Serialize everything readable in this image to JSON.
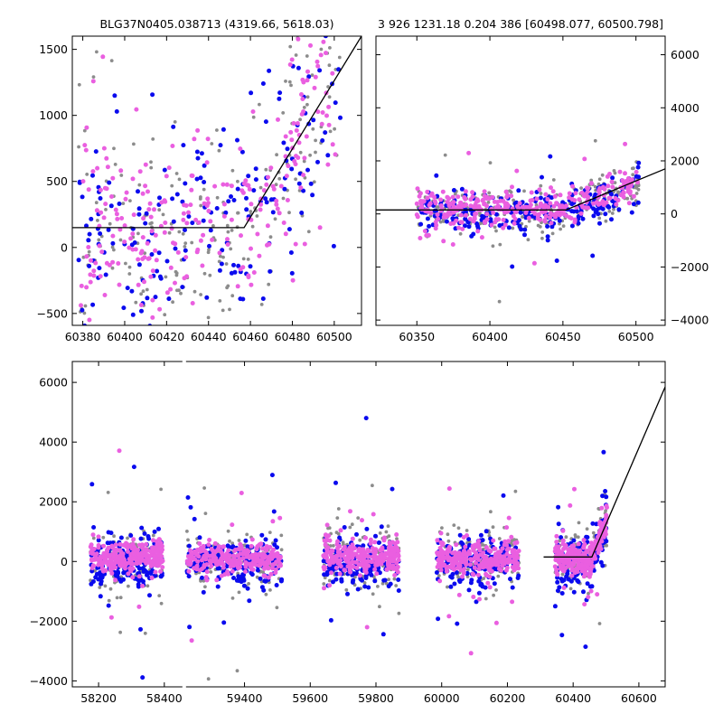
{
  "titles": {
    "left": "BLG37N0405.038713 (4319.66, 5618.03)",
    "right": "3 926 1231.18 0.204 386 [60498.077, 60500.798]"
  },
  "colors": {
    "series_grey": "#8c8c8c",
    "series_blue": "#0a0aee",
    "series_magenta": "#ea5fe0",
    "model": "#000000"
  },
  "chart_data": [
    {
      "id": "zoom",
      "type": "scatter",
      "title": "BLG37N0405.038713 (4319.66, 5618.03)",
      "xlim": [
        60375,
        60513
      ],
      "ylim": [
        -590,
        1600
      ],
      "xticks": [
        60380,
        60400,
        60420,
        60440,
        60460,
        60480,
        60500
      ],
      "yticks": [
        -500,
        0,
        500,
        1000,
        1500
      ],
      "grid": false,
      "model": {
        "x": [
          60375,
          60457,
          60513
        ],
        "y": [
          150,
          150,
          1600
        ]
      },
      "series": [
        {
          "color": "series_grey",
          "scatter": {
            "x0": 60378,
            "x1": 60503,
            "ybase": 130,
            "slope_start": 60457,
            "slope": 26,
            "spread": 380,
            "n": 210,
            "seed": 11
          }
        },
        {
          "color": "series_blue",
          "scatter": {
            "x0": 60378,
            "x1": 60503,
            "ybase": 120,
            "slope_start": 60457,
            "slope": 26,
            "spread": 420,
            "n": 190,
            "seed": 23
          }
        },
        {
          "color": "series_magenta",
          "scatter": {
            "x0": 60378,
            "x1": 60503,
            "ybase": 170,
            "slope_start": 60457,
            "slope": 26,
            "spread": 360,
            "n": 260,
            "seed": 37
          }
        }
      ]
    },
    {
      "id": "wide",
      "type": "scatter",
      "title": "3 926 1231.18 0.204 386 [60498.077, 60500.798]",
      "xlim": [
        60322,
        60520
      ],
      "ylim": [
        -4200,
        6700
      ],
      "xticks": [
        60350,
        60400,
        60450,
        60500
      ],
      "yticks": [
        -4000,
        -2000,
        0,
        2000,
        4000,
        6000
      ],
      "y_axis_side": "right",
      "grid": false,
      "model": {
        "x": [
          60322,
          60452,
          60520
        ],
        "y": [
          150,
          150,
          1700
        ]
      },
      "series": [
        {
          "color": "series_grey",
          "scatter": {
            "x0": 60350,
            "x1": 60502,
            "ybase": 100,
            "slope_start": 60452,
            "slope": 22,
            "spread": 450,
            "n": 230,
            "seed": 41
          }
        },
        {
          "color": "series_blue",
          "scatter": {
            "x0": 60350,
            "x1": 60502,
            "ybase": 40,
            "slope_start": 60452,
            "slope": 22,
            "spread": 420,
            "n": 260,
            "seed": 53
          }
        },
        {
          "color": "series_magenta",
          "scatter": {
            "x0": 60350,
            "x1": 60502,
            "ybase": 150,
            "slope_start": 60452,
            "slope": 22,
            "spread": 300,
            "n": 320,
            "seed": 67
          }
        }
      ]
    },
    {
      "id": "full",
      "type": "scatter",
      "xlim": [
        58120,
        60680
      ],
      "ylim": [
        -4200,
        6700
      ],
      "xticks": [
        58200,
        58400,
        59400,
        59600,
        59800,
        60000,
        60200,
        60400,
        60600
      ],
      "yticks": [
        -4000,
        -2000,
        0,
        2000,
        4000,
        6000
      ],
      "grid": false,
      "axis_break": {
        "after": 58455,
        "before": 59222,
        "broken_px_gap": 4
      },
      "seasons": [
        [
          58175,
          58395
        ],
        [
          59225,
          59515
        ],
        [
          59640,
          59870
        ],
        [
          59985,
          60235
        ],
        [
          60345,
          60503
        ]
      ],
      "model": {
        "x": [
          60310,
          60457,
          60680
        ],
        "y": [
          150,
          150,
          5850
        ]
      },
      "series": [
        {
          "color": "series_grey",
          "scatter": {
            "ybase": 100,
            "spread": 520,
            "n_per_season": 120,
            "seed": 71
          }
        },
        {
          "color": "series_blue",
          "scatter": {
            "ybase": -80,
            "spread": 420,
            "n_per_season": 170,
            "seed": 83
          }
        },
        {
          "color": "series_magenta",
          "scatter": {
            "ybase": 130,
            "spread": 260,
            "n_per_season": 260,
            "seed": 97
          }
        }
      ]
    }
  ]
}
